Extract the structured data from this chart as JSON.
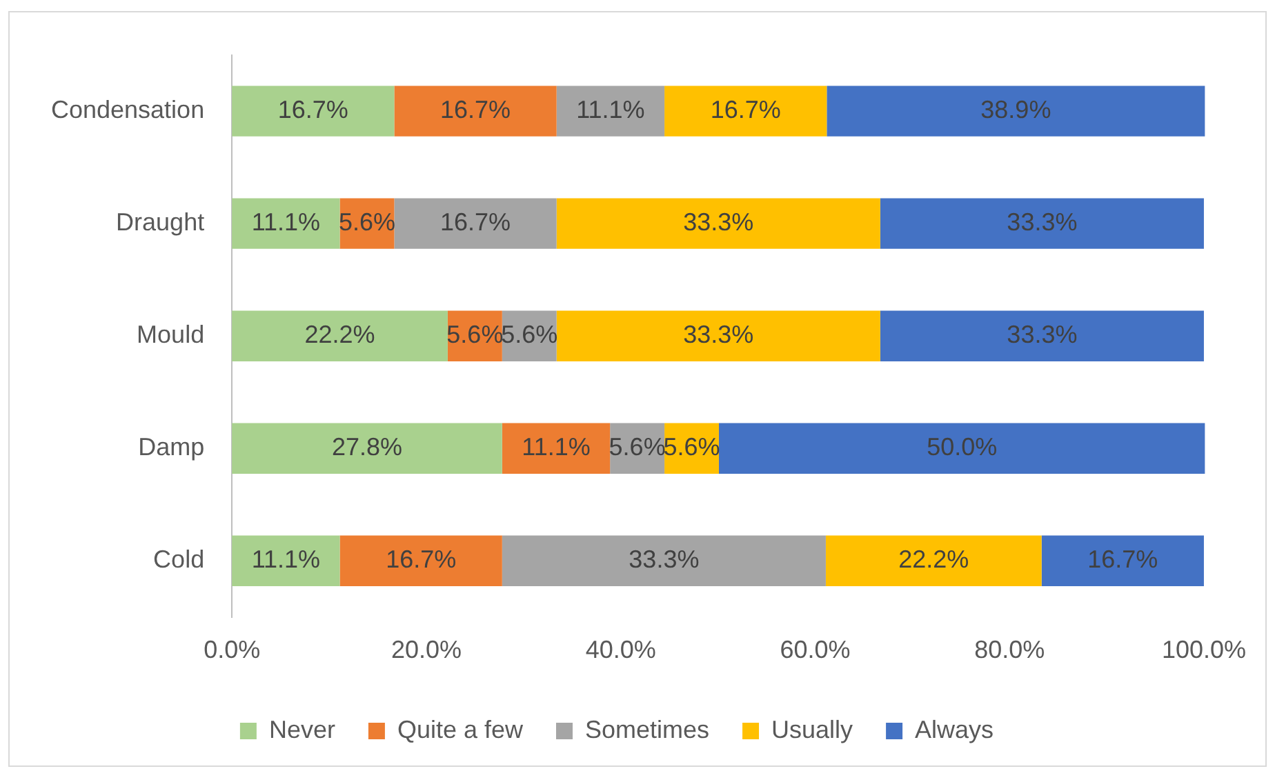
{
  "chart_data": {
    "type": "bar",
    "orientation": "horizontal",
    "stacked": true,
    "categories": [
      "Condensation",
      "Draught",
      "Mould",
      "Damp",
      "Cold"
    ],
    "series": [
      {
        "name": "Never",
        "color": "#a9d18e",
        "values": [
          16.7,
          11.1,
          22.2,
          27.8,
          11.1
        ],
        "value_labels": [
          "16.7%",
          "11.1%",
          "22.2%",
          "27.8%",
          "11.1%"
        ]
      },
      {
        "name": "Quite a few",
        "color": "#ed7d31",
        "values": [
          16.7,
          5.6,
          5.6,
          11.1,
          16.7
        ],
        "value_labels": [
          "16.7%",
          "5.6%",
          "5.6%",
          "11.1%",
          "16.7%"
        ]
      },
      {
        "name": "Sometimes",
        "color": "#a5a5a5",
        "values": [
          11.1,
          16.7,
          5.6,
          5.6,
          33.3
        ],
        "value_labels": [
          "11.1%",
          "16.7%",
          "5.6%",
          "5.6%",
          "33.3%"
        ]
      },
      {
        "name": "Usually",
        "color": "#ffc000",
        "values": [
          16.7,
          33.3,
          33.3,
          5.6,
          22.2
        ],
        "value_labels": [
          "16.7%",
          "33.3%",
          "33.3%",
          "5.6%",
          "22.2%"
        ]
      },
      {
        "name": "Always",
        "color": "#4472c4",
        "values": [
          38.9,
          33.3,
          33.3,
          50.0,
          16.7
        ],
        "value_labels": [
          "38.9%",
          "33.3%",
          "33.3%",
          "50.0%",
          "16.7%"
        ]
      }
    ],
    "xlim": [
      0,
      100
    ],
    "xticks": [
      {
        "value": 0,
        "label": "0.0%"
      },
      {
        "value": 20,
        "label": "20.0%"
      },
      {
        "value": 40,
        "label": "40.0%"
      },
      {
        "value": 60,
        "label": "60.0%"
      },
      {
        "value": 80,
        "label": "80.0%"
      },
      {
        "value": 100,
        "label": "100.0%"
      }
    ],
    "grid": false,
    "legend": "bottom"
  }
}
